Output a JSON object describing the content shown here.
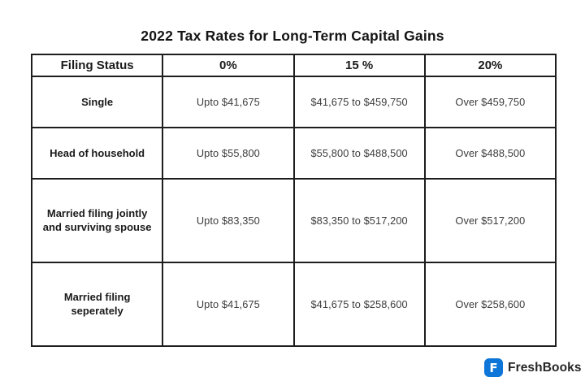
{
  "title": "2022 Tax Rates for Long-Term Capital Gains",
  "table": {
    "headers": [
      "Filing Status",
      "0%",
      "15 %",
      "20%"
    ],
    "rows": [
      [
        "Single",
        "Upto $41,675",
        "$41,675 to $459,750",
        "Over $459,750"
      ],
      [
        "Head of household",
        "Upto $55,800",
        "$55,800 to $488,500",
        "Over $488,500"
      ],
      [
        "Married filing jointly and surviving spouse",
        "Upto $83,350",
        "$83,350 to $517,200",
        "Over $517,200"
      ],
      [
        "Married filing seperately",
        "Upto $41,675",
        "$41,675 to $258,600",
        "Over $258,600"
      ]
    ]
  },
  "chart_data": {
    "type": "table",
    "title": "2022 Tax Rates for Long-Term Capital Gains",
    "columns": [
      "Filing Status",
      "0%",
      "15 %",
      "20%"
    ],
    "rows": [
      [
        "Single",
        "Upto $41,675",
        "$41,675 to $459,750",
        "Over $459,750"
      ],
      [
        "Head of household",
        "Upto $55,800",
        "$55,800 to $488,500",
        "Over $488,500"
      ],
      [
        "Married filing jointly and surviving spouse",
        "Upto $83,350",
        "$83,350 to $517,200",
        "Over $517,200"
      ],
      [
        "Married filing seperately",
        "Upto $41,675",
        "$41,675 to $258,600",
        "Over $258,600"
      ]
    ],
    "layout": {
      "grid": true,
      "border_color": "#1d1d1d",
      "background": "#ffffff"
    }
  },
  "footer": {
    "brand_name": "FreshBooks",
    "icon": "freshbooks-f-icon",
    "icon_letter": "F",
    "icon_color": "#0d76d8"
  }
}
